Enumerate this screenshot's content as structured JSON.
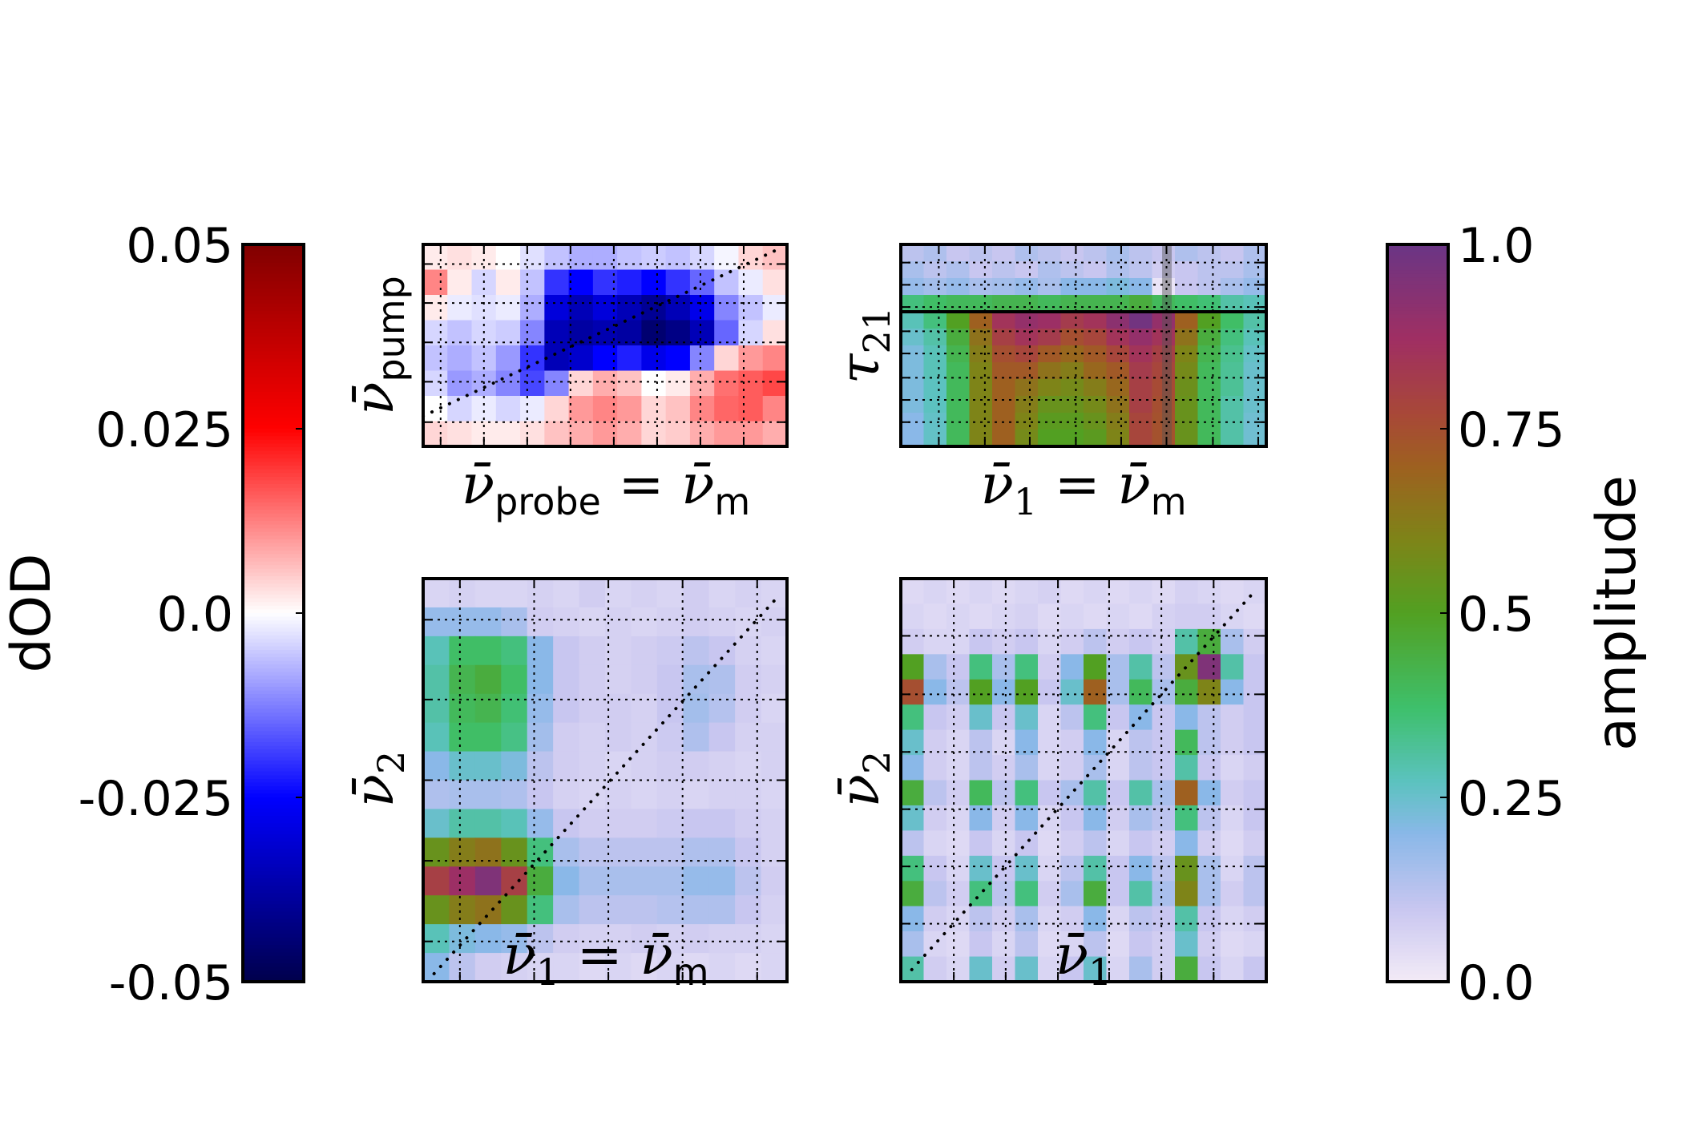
{
  "chart_data": [
    {
      "type": "heatmap",
      "panel": "top-left",
      "xlabel": {
        "var": "ν̄",
        "sub": "probe",
        "eq": " = ",
        "var2": "ν̄",
        "sub2": "m"
      },
      "ylabel": {
        "var": "ν̄",
        "sub": "pump"
      },
      "colorbar": "dOD",
      "diagonal": true,
      "values": [
        [
          0.002,
          0.003,
          0.002,
          0,
          -0.003,
          -0.006,
          -0.008,
          -0.008,
          -0.006,
          -0.005,
          -0.006,
          -0.004,
          -0.001,
          0.004,
          0.006
        ],
        [
          0.012,
          0.002,
          -0.004,
          0.002,
          -0.006,
          -0.02,
          -0.025,
          -0.02,
          -0.022,
          -0.025,
          -0.02,
          -0.015,
          -0.006,
          -0.002,
          0.003
        ],
        [
          0.002,
          -0.002,
          -0.003,
          -0.002,
          -0.008,
          -0.03,
          -0.035,
          -0.03,
          -0.035,
          -0.04,
          -0.035,
          -0.028,
          -0.012,
          -0.006,
          -0.002
        ],
        [
          -0.004,
          -0.006,
          -0.004,
          -0.005,
          -0.012,
          -0.035,
          -0.038,
          -0.036,
          -0.038,
          -0.045,
          -0.042,
          -0.035,
          -0.015,
          -0.004,
          0.003
        ],
        [
          -0.006,
          -0.008,
          -0.006,
          -0.01,
          -0.02,
          -0.035,
          -0.032,
          -0.025,
          -0.022,
          -0.028,
          -0.025,
          -0.012,
          0.004,
          0.01,
          0.012
        ],
        [
          -0.004,
          -0.01,
          -0.008,
          -0.012,
          -0.018,
          -0.012,
          0.004,
          0.008,
          0.006,
          0.0,
          0.002,
          0.008,
          0.014,
          0.016,
          0.018
        ],
        [
          0.0,
          -0.004,
          -0.002,
          -0.004,
          -0.002,
          0.004,
          0.01,
          0.012,
          0.01,
          0.004,
          0.006,
          0.012,
          0.015,
          0.016,
          0.012
        ],
        [
          0.004,
          0.003,
          0.002,
          0.002,
          0.003,
          0.006,
          0.008,
          0.01,
          0.008,
          0.004,
          0.005,
          0.008,
          0.01,
          0.01,
          0.008
        ]
      ]
    },
    {
      "type": "heatmap",
      "panel": "top-right",
      "xlabel": {
        "var": "ν̄",
        "sub": "1",
        "eq": " = ",
        "var2": "ν̄",
        "sub2": "m"
      },
      "ylabel": {
        "var": "τ",
        "sub": "21"
      },
      "colorbar": "amplitude",
      "horizontal_line": true,
      "highlighted_column": true,
      "values": [
        [
          0.12,
          0.14,
          0.1,
          0.12,
          0.1,
          0.14,
          0.12,
          0.1,
          0.12,
          0.15,
          0.12,
          0.1,
          0.14,
          0.12,
          0.1,
          0.14
        ],
        [
          0.15,
          0.12,
          0.14,
          0.1,
          0.12,
          0.1,
          0.14,
          0.12,
          0.1,
          0.14,
          0.12,
          0.08,
          0.1,
          0.12,
          0.12,
          0.15
        ],
        [
          0.18,
          0.16,
          0.18,
          0.15,
          0.16,
          0.18,
          0.15,
          0.2,
          0.2,
          0.22,
          0.2,
          0.02,
          0.1,
          0.12,
          0.15,
          0.18
        ],
        [
          0.35,
          0.38,
          0.4,
          0.4,
          0.42,
          0.42,
          0.4,
          0.42,
          0.42,
          0.42,
          0.45,
          0.4,
          0.38,
          0.36,
          0.3,
          0.28
        ],
        [
          0.28,
          0.35,
          0.5,
          0.7,
          0.85,
          0.9,
          0.88,
          0.82,
          0.85,
          0.92,
          0.98,
          0.9,
          0.7,
          0.5,
          0.38,
          0.3
        ],
        [
          0.25,
          0.3,
          0.45,
          0.65,
          0.8,
          0.85,
          0.82,
          0.75,
          0.78,
          0.85,
          0.9,
          0.85,
          0.65,
          0.45,
          0.35,
          0.28
        ],
        [
          0.22,
          0.28,
          0.42,
          0.62,
          0.75,
          0.78,
          0.72,
          0.68,
          0.72,
          0.78,
          0.85,
          0.8,
          0.6,
          0.42,
          0.33,
          0.26
        ],
        [
          0.22,
          0.28,
          0.4,
          0.6,
          0.72,
          0.72,
          0.65,
          0.62,
          0.68,
          0.72,
          0.82,
          0.78,
          0.58,
          0.4,
          0.32,
          0.25
        ],
        [
          0.22,
          0.27,
          0.4,
          0.6,
          0.7,
          0.65,
          0.6,
          0.58,
          0.62,
          0.68,
          0.8,
          0.76,
          0.56,
          0.4,
          0.32,
          0.25
        ],
        [
          0.22,
          0.27,
          0.4,
          0.6,
          0.7,
          0.62,
          0.55,
          0.55,
          0.58,
          0.65,
          0.8,
          0.75,
          0.55,
          0.4,
          0.3,
          0.25
        ],
        [
          0.2,
          0.26,
          0.4,
          0.6,
          0.7,
          0.6,
          0.52,
          0.52,
          0.55,
          0.62,
          0.78,
          0.74,
          0.55,
          0.4,
          0.3,
          0.24
        ],
        [
          0.2,
          0.26,
          0.4,
          0.6,
          0.7,
          0.58,
          0.5,
          0.5,
          0.52,
          0.6,
          0.78,
          0.74,
          0.55,
          0.4,
          0.3,
          0.24
        ]
      ]
    },
    {
      "type": "heatmap",
      "panel": "bottom-left",
      "xlabel": {
        "var": "ν̄",
        "sub": "1",
        "eq": " = ",
        "var2": "ν̄",
        "sub2": "m"
      },
      "ylabel": {
        "var": "ν̄",
        "sub": "2"
      },
      "colorbar": "amplitude",
      "diagonal": true,
      "values": [
        [
          0.06,
          0.07,
          0.06,
          0.06,
          0.07,
          0.06,
          0.08,
          0.06,
          0.07,
          0.06,
          0.08,
          0.06,
          0.07,
          0.06
        ],
        [
          0.18,
          0.18,
          0.18,
          0.15,
          0.08,
          0.07,
          0.06,
          0.07,
          0.06,
          0.07,
          0.08,
          0.07,
          0.06,
          0.07
        ],
        [
          0.28,
          0.38,
          0.38,
          0.35,
          0.2,
          0.1,
          0.08,
          0.07,
          0.08,
          0.09,
          0.12,
          0.1,
          0.07,
          0.06
        ],
        [
          0.3,
          0.42,
          0.45,
          0.38,
          0.2,
          0.1,
          0.08,
          0.07,
          0.08,
          0.1,
          0.15,
          0.14,
          0.08,
          0.07
        ],
        [
          0.3,
          0.4,
          0.42,
          0.36,
          0.18,
          0.1,
          0.08,
          0.08,
          0.07,
          0.1,
          0.16,
          0.13,
          0.08,
          0.06
        ],
        [
          0.28,
          0.38,
          0.38,
          0.34,
          0.16,
          0.08,
          0.07,
          0.08,
          0.07,
          0.09,
          0.14,
          0.1,
          0.07,
          0.07
        ],
        [
          0.2,
          0.25,
          0.25,
          0.22,
          0.12,
          0.08,
          0.07,
          0.06,
          0.07,
          0.08,
          0.08,
          0.07,
          0.06,
          0.07
        ],
        [
          0.14,
          0.15,
          0.15,
          0.14,
          0.1,
          0.07,
          0.06,
          0.07,
          0.06,
          0.07,
          0.06,
          0.07,
          0.07,
          0.06
        ],
        [
          0.25,
          0.3,
          0.3,
          0.28,
          0.18,
          0.1,
          0.08,
          0.08,
          0.08,
          0.09,
          0.1,
          0.1,
          0.08,
          0.07
        ],
        [
          0.55,
          0.62,
          0.65,
          0.55,
          0.35,
          0.15,
          0.12,
          0.12,
          0.12,
          0.12,
          0.14,
          0.14,
          0.1,
          0.07
        ],
        [
          0.8,
          0.88,
          0.95,
          0.8,
          0.45,
          0.2,
          0.15,
          0.15,
          0.15,
          0.15,
          0.18,
          0.18,
          0.12,
          0.08
        ],
        [
          0.55,
          0.62,
          0.65,
          0.55,
          0.35,
          0.15,
          0.12,
          0.12,
          0.12,
          0.13,
          0.14,
          0.14,
          0.1,
          0.07
        ],
        [
          0.28,
          0.22,
          0.2,
          0.18,
          0.12,
          0.08,
          0.07,
          0.07,
          0.08,
          0.07,
          0.08,
          0.07,
          0.07,
          0.06
        ],
        [
          0.2,
          0.12,
          0.08,
          0.07,
          0.06,
          0.06,
          0.05,
          0.06,
          0.05,
          0.06,
          0.05,
          0.06,
          0.05,
          0.06
        ]
      ]
    },
    {
      "type": "heatmap",
      "panel": "bottom-right",
      "xlabel": {
        "var": "ν̄",
        "sub": "1"
      },
      "ylabel": {
        "var": "ν̄",
        "sub": "2"
      },
      "colorbar": "amplitude",
      "diagonal": true,
      "values": [
        [
          0.05,
          0.06,
          0.05,
          0.06,
          0.05,
          0.06,
          0.07,
          0.05,
          0.06,
          0.05,
          0.06,
          0.05,
          0.07,
          0.06,
          0.05,
          0.06
        ],
        [
          0.06,
          0.05,
          0.06,
          0.05,
          0.06,
          0.07,
          0.05,
          0.06,
          0.05,
          0.06,
          0.05,
          0.07,
          0.08,
          0.08,
          0.06,
          0.05
        ],
        [
          0.08,
          0.06,
          0.06,
          0.1,
          0.08,
          0.1,
          0.06,
          0.08,
          0.12,
          0.08,
          0.1,
          0.08,
          0.3,
          0.45,
          0.15,
          0.08
        ],
        [
          0.5,
          0.15,
          0.1,
          0.35,
          0.15,
          0.35,
          0.08,
          0.2,
          0.5,
          0.15,
          0.3,
          0.12,
          0.55,
          0.95,
          0.3,
          0.1
        ],
        [
          0.75,
          0.2,
          0.12,
          0.5,
          0.2,
          0.5,
          0.1,
          0.25,
          0.7,
          0.15,
          0.4,
          0.15,
          0.45,
          0.6,
          0.2,
          0.1
        ],
        [
          0.35,
          0.1,
          0.08,
          0.25,
          0.1,
          0.25,
          0.06,
          0.12,
          0.35,
          0.1,
          0.2,
          0.1,
          0.2,
          0.12,
          0.08,
          0.1
        ],
        [
          0.25,
          0.08,
          0.06,
          0.12,
          0.06,
          0.2,
          0.06,
          0.08,
          0.2,
          0.06,
          0.12,
          0.1,
          0.4,
          0.12,
          0.08,
          0.1
        ],
        [
          0.2,
          0.08,
          0.06,
          0.12,
          0.08,
          0.15,
          0.06,
          0.08,
          0.15,
          0.06,
          0.12,
          0.1,
          0.3,
          0.1,
          0.06,
          0.08
        ],
        [
          0.45,
          0.12,
          0.08,
          0.4,
          0.12,
          0.35,
          0.1,
          0.15,
          0.3,
          0.1,
          0.3,
          0.15,
          0.7,
          0.2,
          0.08,
          0.1
        ],
        [
          0.25,
          0.08,
          0.06,
          0.2,
          0.08,
          0.2,
          0.06,
          0.1,
          0.2,
          0.08,
          0.15,
          0.12,
          0.35,
          0.12,
          0.06,
          0.1
        ],
        [
          0.12,
          0.06,
          0.05,
          0.1,
          0.06,
          0.1,
          0.05,
          0.08,
          0.12,
          0.06,
          0.1,
          0.08,
          0.2,
          0.08,
          0.05,
          0.08
        ],
        [
          0.35,
          0.1,
          0.06,
          0.25,
          0.1,
          0.25,
          0.06,
          0.12,
          0.3,
          0.1,
          0.2,
          0.12,
          0.55,
          0.15,
          0.06,
          0.12
        ],
        [
          0.45,
          0.12,
          0.08,
          0.35,
          0.12,
          0.35,
          0.08,
          0.15,
          0.45,
          0.1,
          0.3,
          0.15,
          0.6,
          0.15,
          0.08,
          0.12
        ],
        [
          0.2,
          0.08,
          0.06,
          0.12,
          0.08,
          0.15,
          0.06,
          0.08,
          0.2,
          0.06,
          0.12,
          0.1,
          0.3,
          0.1,
          0.06,
          0.08
        ],
        [
          0.15,
          0.06,
          0.05,
          0.1,
          0.06,
          0.12,
          0.05,
          0.06,
          0.12,
          0.05,
          0.1,
          0.08,
          0.25,
          0.08,
          0.05,
          0.06
        ],
        [
          0.3,
          0.08,
          0.06,
          0.25,
          0.08,
          0.25,
          0.06,
          0.1,
          0.25,
          0.06,
          0.15,
          0.08,
          0.45,
          0.1,
          0.06,
          0.1
        ]
      ]
    }
  ],
  "colorbars": {
    "dod": {
      "label": "dOD",
      "range": [
        -0.05,
        0.05
      ],
      "ticks": [
        {
          "v": 0.05,
          "label": "0.05"
        },
        {
          "v": 0.025,
          "label": "0.025"
        },
        {
          "v": 0.0,
          "label": "0.0"
        },
        {
          "v": -0.025,
          "label": "-0.025"
        },
        {
          "v": -0.05,
          "label": "-0.05"
        }
      ],
      "stops": [
        [
          -0.05,
          "#00004c"
        ],
        [
          -0.025,
          "#0000ff"
        ],
        [
          0.0,
          "#ffffff"
        ],
        [
          0.025,
          "#ff0000"
        ],
        [
          0.05,
          "#800000"
        ]
      ]
    },
    "amplitude": {
      "label": "amplitude",
      "range": [
        0,
        1
      ],
      "ticks": [
        {
          "v": 1.0,
          "label": "1.0"
        },
        {
          "v": 0.75,
          "label": "0.75"
        },
        {
          "v": 0.5,
          "label": "0.5"
        },
        {
          "v": 0.25,
          "label": "0.25"
        },
        {
          "v": 0.0,
          "label": "0.0"
        }
      ],
      "stops": [
        [
          0,
          "#f3ebf7"
        ],
        [
          0.1,
          "#c8c6f0"
        ],
        [
          0.2,
          "#8ab8e8"
        ],
        [
          0.27,
          "#5cc2c0"
        ],
        [
          0.37,
          "#3ec06c"
        ],
        [
          0.5,
          "#52a022"
        ],
        [
          0.6,
          "#7e8418"
        ],
        [
          0.7,
          "#9e6020"
        ],
        [
          0.77,
          "#a84838"
        ],
        [
          0.87,
          "#a02f62"
        ],
        [
          1.0,
          "#6a3585"
        ]
      ]
    }
  }
}
